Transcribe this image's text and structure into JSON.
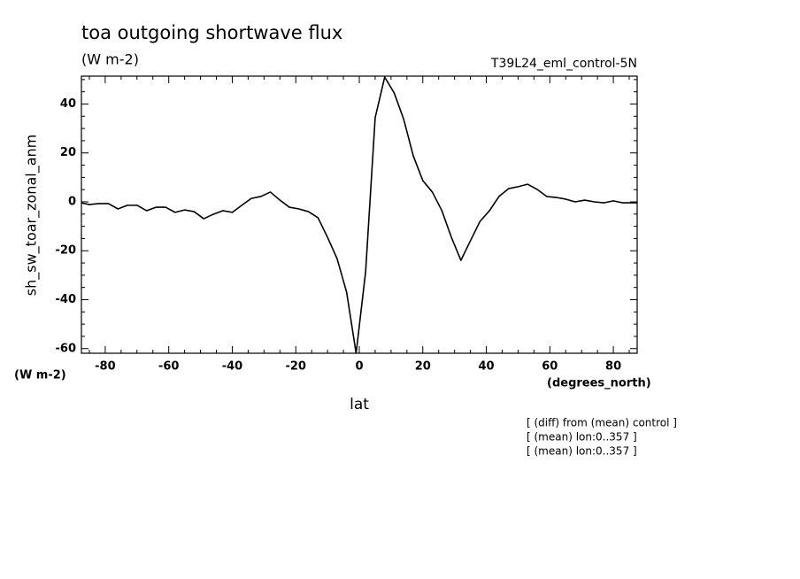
{
  "chart_data": {
    "type": "line",
    "title": "toa outgoing shortwave flux",
    "subtitle": "(W m-2)",
    "dataset_label": "T39L24_eml_control-5N",
    "y_label": "sh_sw_toar_zonal_anm",
    "y_units": "(W m-2)",
    "x_units": "(degrees_north)",
    "x_label": "lat",
    "notes": [
      "[ (diff) from (mean) control ]",
      "[ (mean) lon:0..357 ]",
      "[ (mean) lon:0..357 ]"
    ],
    "x": [
      -87.5,
      -85,
      -82,
      -79,
      -76,
      -73,
      -70,
      -67,
      -64,
      -61,
      -58,
      -55,
      -52,
      -49,
      -46,
      -43,
      -40,
      -37,
      -34,
      -31,
      -28,
      -25,
      -22,
      -19,
      -16,
      -13,
      -10,
      -7,
      -4,
      -1,
      2,
      5,
      8,
      11,
      14,
      17,
      20,
      23,
      26,
      29,
      32,
      35,
      38,
      41,
      44,
      47,
      50,
      53,
      56,
      59,
      62,
      65,
      68,
      71,
      74,
      77,
      80,
      83,
      86,
      87.5
    ],
    "series": [
      {
        "color": "#000000",
        "values": [
          -0.4,
          -1.1,
          -0.7,
          -0.7,
          -2.9,
          -1.4,
          -1.4,
          -3.6,
          -2.2,
          -2.2,
          -4.3,
          -3.3,
          -4.0,
          -6.9,
          -5.1,
          -3.6,
          -4.3,
          -1.4,
          1.4,
          2.2,
          4.0,
          0.7,
          -2.2,
          -2.9,
          -4.0,
          -6.5,
          -14.5,
          -23.2,
          -36.9,
          -61.9,
          -28.5,
          34.4,
          51.0,
          44.5,
          33.7,
          18.8,
          8.7,
          4.0,
          -3.6,
          -14.5,
          -23.9,
          -15.9,
          -8.0,
          -3.6,
          2.2,
          5.4,
          6.2,
          7.2,
          5.1,
          2.2,
          1.8,
          1.1,
          0,
          0.7,
          0,
          -0.4,
          0.4,
          -0.4,
          -0.4,
          -0.4
        ]
      }
    ],
    "xlim": [
      -87.5,
      87.5
    ],
    "ylim": [
      -61.9,
      51.4
    ],
    "xticks": [
      -80,
      -60,
      -40,
      -20,
      0,
      20,
      40,
      60,
      80
    ],
    "yticks": [
      -60,
      -40,
      -20,
      0,
      20,
      40
    ],
    "xminorticks": [
      -85,
      -75,
      -70,
      -65,
      -55,
      -50,
      -45,
      -35,
      -30,
      -25,
      -15,
      -10,
      -5,
      5,
      10,
      15,
      25,
      30,
      35,
      45,
      50,
      55,
      65,
      70,
      75,
      85
    ],
    "yminorticks": [
      -55,
      -50,
      -45,
      -35,
      -30,
      -25,
      -15,
      -10,
      -5,
      5,
      10,
      15,
      25,
      30,
      35,
      45,
      50
    ]
  }
}
